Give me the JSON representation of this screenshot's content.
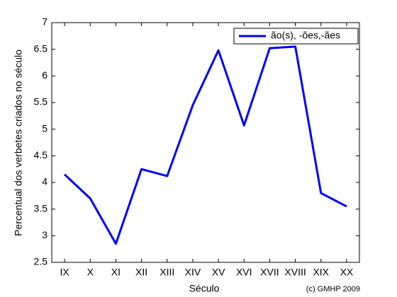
{
  "chart_data": {
    "type": "line",
    "xlabel": "Século",
    "ylabel": "Percentual dos verbetes criados no século",
    "annotation": "(c) GMHP 2009",
    "categories": [
      "IX",
      "X",
      "XI",
      "XII",
      "XIII",
      "XIV",
      "XV",
      "XVI",
      "XVII",
      "XVIII",
      "XIX",
      "XX"
    ],
    "series": [
      {
        "name": "ão(s), -ões,-ães",
        "color": "#0000ff",
        "values": [
          4.15,
          3.7,
          2.85,
          4.25,
          4.12,
          5.45,
          6.48,
          5.07,
          6.52,
          6.55,
          3.8,
          3.55
        ]
      }
    ],
    "ylim": [
      2.5,
      7
    ],
    "yticks": [
      2.5,
      3,
      3.5,
      4,
      4.5,
      5,
      5.5,
      6,
      6.5,
      7
    ],
    "legend": "upper right",
    "grid": false
  }
}
